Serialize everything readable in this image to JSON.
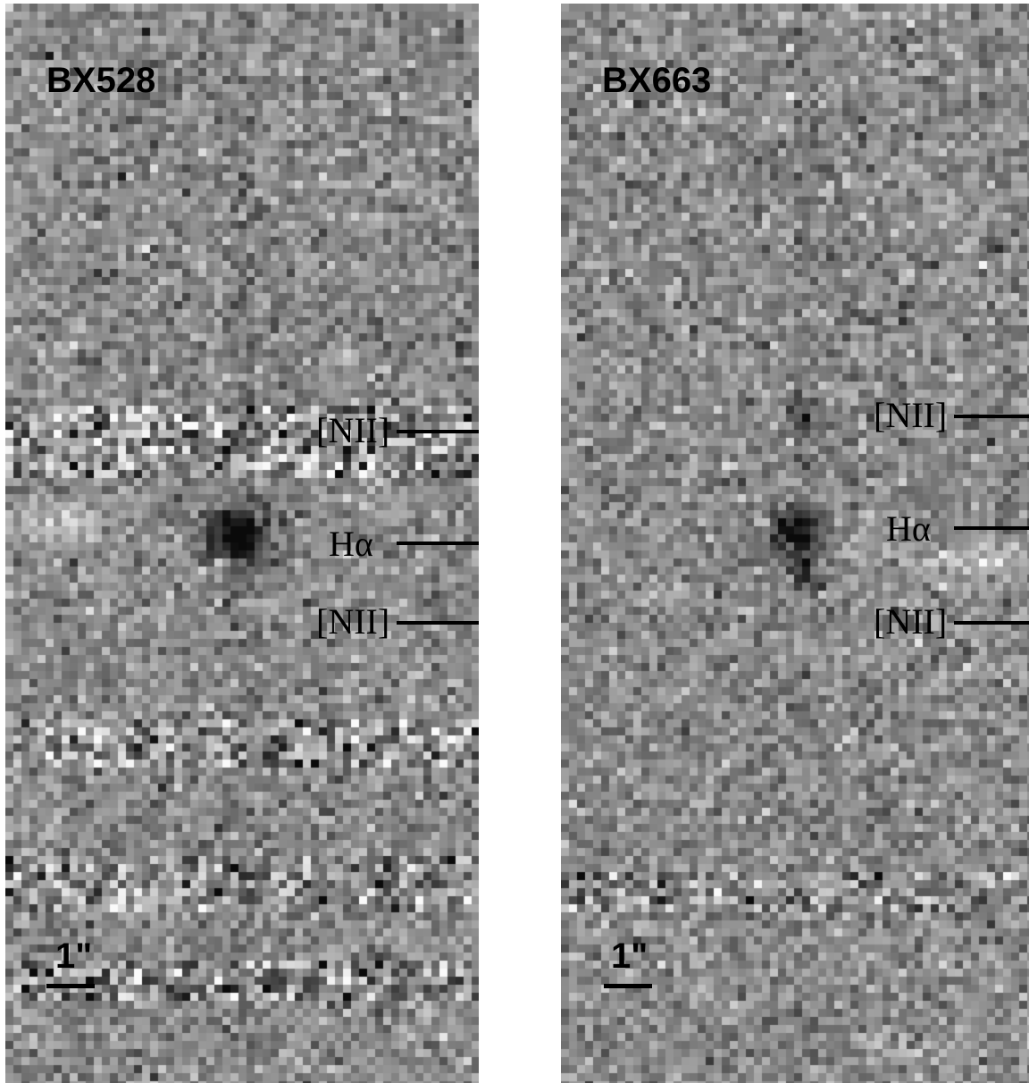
{
  "panels": [
    {
      "object": "BX528",
      "lines": [
        "[NII]",
        "Hα",
        "[NII]"
      ],
      "scale": "1\""
    },
    {
      "object": "BX663",
      "lines": [
        "[NII]",
        "Hα",
        "[NII]"
      ],
      "scale": "1\""
    }
  ]
}
